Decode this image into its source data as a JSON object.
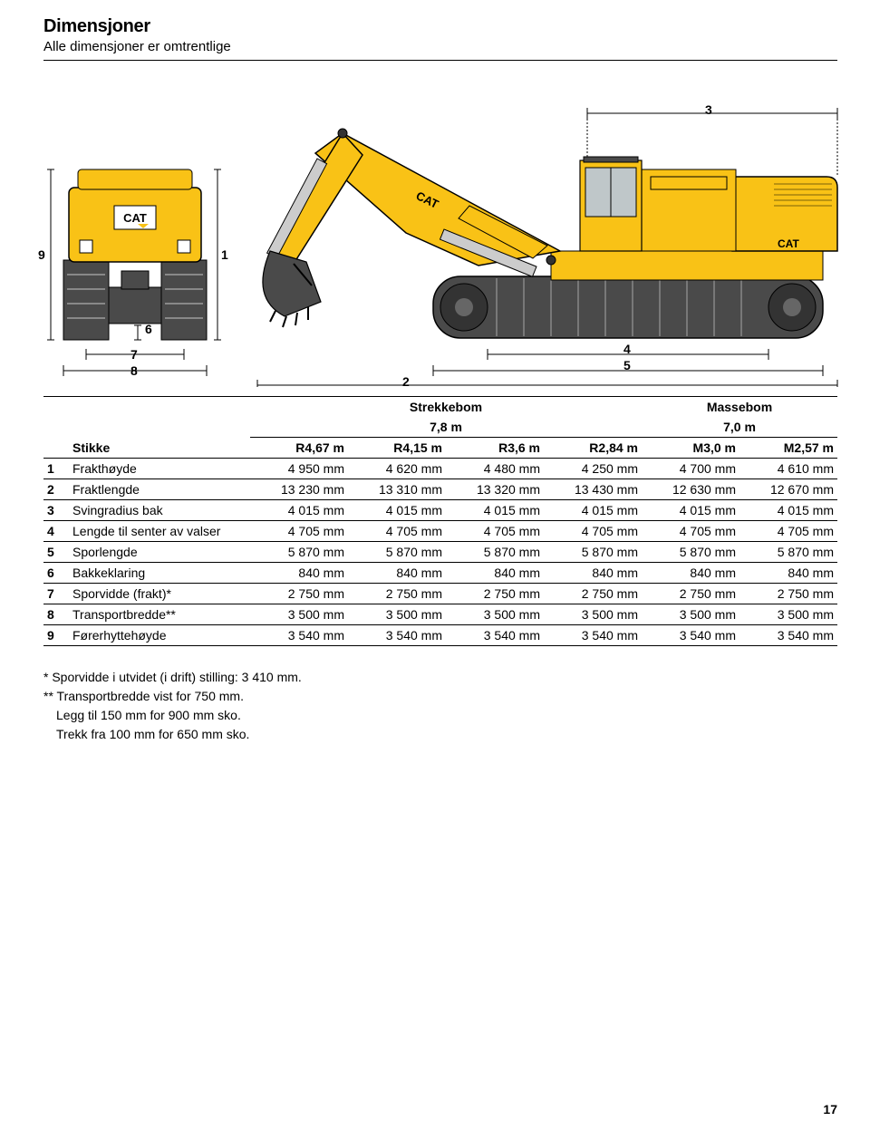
{
  "title": "Dimensjoner",
  "subtitle": "Alle dimensjoner er omtrentlige",
  "diagram": {
    "labels": {
      "n1": "1",
      "n2": "2",
      "n3": "3",
      "n4": "4",
      "n5": "5",
      "n6": "6",
      "n7": "7",
      "n8": "8",
      "n9": "9"
    },
    "colors": {
      "body": "#f9c216",
      "track": "#4a4a4a",
      "outline": "#000000",
      "dim_line": "#000000",
      "glass": "#bfc7c9"
    }
  },
  "table": {
    "group_headers": {
      "strekke": "Strekkebom",
      "strekke_val": "7,8 m",
      "masse": "Massebom",
      "masse_val": "7,0 m"
    },
    "stikke_label": "Stikke",
    "cols": [
      "R4,67 m",
      "R4,15 m",
      "R3,6 m",
      "R2,84 m",
      "M3,0 m",
      "M2,57 m"
    ],
    "rows": [
      {
        "n": "1",
        "label": "Frakthøyde",
        "vals": [
          "4 950 mm",
          "4 620 mm",
          "4 480 mm",
          "4 250 mm",
          "4 700 mm",
          "4 610 mm"
        ]
      },
      {
        "n": "2",
        "label": "Fraktlengde",
        "vals": [
          "13 230 mm",
          "13 310 mm",
          "13 320 mm",
          "13 430 mm",
          "12 630 mm",
          "12 670 mm"
        ]
      },
      {
        "n": "3",
        "label": "Svingradius bak",
        "vals": [
          "4 015 mm",
          "4 015 mm",
          "4 015 mm",
          "4 015 mm",
          "4 015 mm",
          "4 015 mm"
        ]
      },
      {
        "n": "4",
        "label": "Lengde til senter av valser",
        "vals": [
          "4 705 mm",
          "4 705 mm",
          "4 705 mm",
          "4 705 mm",
          "4 705 mm",
          "4 705 mm"
        ]
      },
      {
        "n": "5",
        "label": "Sporlengde",
        "vals": [
          "5 870 mm",
          "5 870 mm",
          "5 870 mm",
          "5 870 mm",
          "5 870 mm",
          "5 870 mm"
        ]
      },
      {
        "n": "6",
        "label": "Bakkeklaring",
        "vals": [
          "840 mm",
          "840 mm",
          "840 mm",
          "840 mm",
          "840 mm",
          "840 mm"
        ]
      },
      {
        "n": "7",
        "label": "Sporvidde (frakt)*",
        "vals": [
          "2 750 mm",
          "2 750 mm",
          "2 750 mm",
          "2 750 mm",
          "2 750 mm",
          "2 750 mm"
        ]
      },
      {
        "n": "8",
        "label": "Transportbredde**",
        "vals": [
          "3 500 mm",
          "3 500 mm",
          "3 500 mm",
          "3 500 mm",
          "3 500 mm",
          "3 500 mm"
        ]
      },
      {
        "n": "9",
        "label": "Førerhyttehøyde",
        "vals": [
          "3 540 mm",
          "3 540 mm",
          "3 540 mm",
          "3 540 mm",
          "3 540 mm",
          "3 540 mm"
        ]
      }
    ]
  },
  "notes": [
    "* Sporvidde i utvidet (i drift) stilling: 3 410 mm.",
    "** Transportbredde vist for 750 mm.",
    "Legg til 150 mm for 900 mm sko.",
    "Trekk fra 100 mm for 650 mm sko."
  ],
  "page_number": "17"
}
